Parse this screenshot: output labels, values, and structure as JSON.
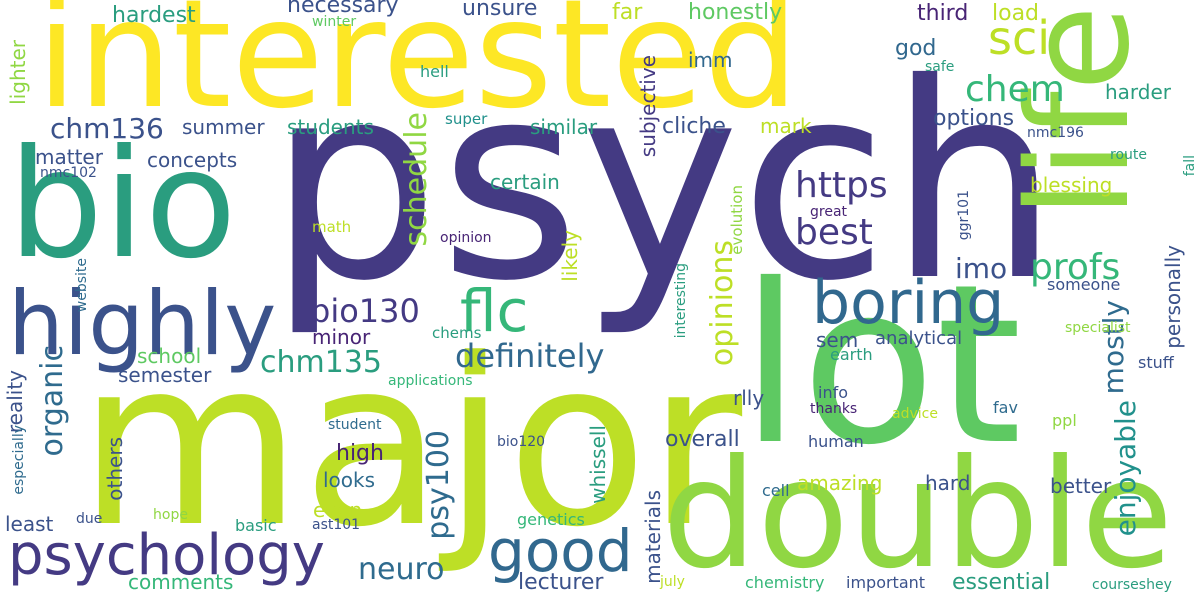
{
  "palette": {
    "indigo": "#443a83",
    "navy": "#31688e",
    "blue": "#2f6b8e",
    "teal": "#21918c",
    "teal2": "#2a9d7f",
    "green": "#35b779",
    "green2": "#5ec962",
    "lime": "#90d743",
    "yellowgreen": "#bddf26",
    "yellow": "#fde725",
    "purple": "#482475",
    "darkblue": "#3b528b"
  },
  "words": {
    "psych": "psych",
    "interested": "interested",
    "major": "major",
    "lot": "lot",
    "life": "life",
    "bio": "bio",
    "double": "double",
    "highly": "highly",
    "psychology": "psychology",
    "good": "good",
    "boring": "boring",
    "flc": "flc",
    "sci": "sci",
    "chem": "chem",
    "https": "https",
    "best": "best",
    "profs": "profs",
    "definitely": "definitely",
    "chm135": "chm135",
    "bio130": "bio130",
    "schedule": "schedule",
    "opinions": "opinions",
    "organic": "organic",
    "psy100": "psy100",
    "neuro": "neuro",
    "enjoyable": "enjoyable",
    "mostly": "mostly",
    "imo": "imo",
    "chm136": "chm136",
    "hardest": "hardest",
    "necessary": "necessary",
    "unsure": "unsure",
    "far": "far",
    "honestly": "honestly",
    "third": "third",
    "load": "load",
    "winter": "winter",
    "god": "god",
    "imm": "imm",
    "hell": "hell",
    "safe": "safe",
    "summer": "summer",
    "students": "students",
    "similar": "similar",
    "cliche": "cliche",
    "mark": "mark",
    "options": "options",
    "super": "super",
    "matter": "matter",
    "concepts": "concepts",
    "nmc102": "nmc102",
    "nmc196": "nmc196",
    "harder": "harder",
    "subjective": "subjective",
    "certain": "certain",
    "blessing": "blessing",
    "lighter": "lighter",
    "math": "math",
    "opinion": "opinion",
    "evolution": "evolution",
    "likely": "likely",
    "great": "great",
    "ggr101": "ggr101",
    "route": "route",
    "fall": "fall",
    "someone": "someone",
    "minor": "minor",
    "sem": "sem",
    "analytical": "analytical",
    "personally": "personally",
    "specialist": "specialist",
    "school": "school",
    "chems": "chems",
    "earth": "earth",
    "semester": "semester",
    "applications": "applications",
    "interesting": "interesting",
    "website": "website",
    "reality": "reality",
    "rlly": "rlly",
    "info": "info",
    "thanks": "thanks",
    "stuff": "stuff",
    "advice": "advice",
    "fav": "fav",
    "especially": "especially",
    "others": "others",
    "student": "student",
    "high": "high",
    "whissell": "whissell",
    "overall": "overall",
    "ppl": "ppl",
    "human": "human",
    "looks": "looks",
    "bio120": "bio120",
    "amazing": "amazing",
    "hard": "hard",
    "better": "better",
    "cell": "cell",
    "least": "least",
    "even": "even",
    "materials": "materials",
    "due": "due",
    "hope": "hope",
    "basic": "basic",
    "ast101": "ast101",
    "genetics": "genetics",
    "essential": "essential",
    "comments": "comments",
    "lecturer": "lecturer",
    "july": "july",
    "chemistry": "chemistry",
    "important": "important",
    "courseshey": "courseshey"
  }
}
